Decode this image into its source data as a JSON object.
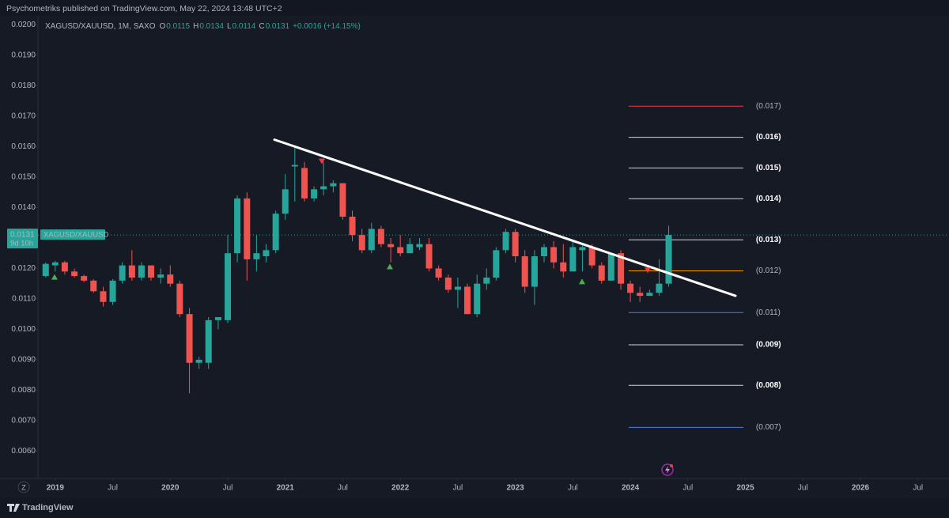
{
  "header": {
    "published": "Psychometriks published on TradingView.com, May 22, 2024 13:48 UTC+2"
  },
  "footer": {
    "brand": "TradingView",
    "timezone_button": "Z"
  },
  "chart_data": {
    "type": "candlestick",
    "legend_title": "XAGUSD/XAUUSD, 1M, SAXO",
    "ohlc_labels": [
      "O",
      "H",
      "L",
      "C"
    ],
    "change": "+0.0016 (+14.15%)",
    "x": [
      2018.917,
      2019.0,
      2019.083,
      2019.167,
      2019.25,
      2019.333,
      2019.417,
      2019.5,
      2019.583,
      2019.667,
      2019.75,
      2019.833,
      2019.917,
      2020.0,
      2020.083,
      2020.167,
      2020.25,
      2020.333,
      2020.417,
      2020.5,
      2020.583,
      2020.667,
      2020.75,
      2020.833,
      2020.917,
      2021.0,
      2021.083,
      2021.167,
      2021.25,
      2021.333,
      2021.417,
      2021.5,
      2021.583,
      2021.667,
      2021.75,
      2021.833,
      2021.917,
      2022.0,
      2022.083,
      2022.167,
      2022.25,
      2022.333,
      2022.417,
      2022.5,
      2022.583,
      2022.667,
      2022.75,
      2022.833,
      2022.917,
      2023.0,
      2023.083,
      2023.167,
      2023.25,
      2023.333,
      2023.417,
      2023.5,
      2023.583,
      2023.667,
      2023.75,
      2023.833,
      2023.917,
      2024.0,
      2024.083,
      2024.167,
      2024.25,
      2024.333
    ],
    "open": [
      0.01175,
      0.0121,
      0.0122,
      0.0119,
      0.01175,
      0.0116,
      0.01125,
      0.0109,
      0.0116,
      0.0121,
      0.0117,
      0.0121,
      0.0117,
      0.0118,
      0.0115,
      0.0105,
      0.0089,
      0.0089,
      0.0103,
      0.0103,
      0.0125,
      0.0143,
      0.0123,
      0.0124,
      0.0126,
      0.0138,
      0.01535,
      0.0153,
      0.0143,
      0.0146,
      0.0147,
      0.0148,
      0.0137,
      0.0131,
      0.0126,
      0.0133,
      0.0128,
      0.0127,
      0.0125,
      0.0127,
      0.0128,
      0.012,
      0.0117,
      0.0113,
      0.0114,
      0.0105,
      0.0115,
      0.0117,
      0.0126,
      0.0132,
      0.0124,
      0.0114,
      0.0124,
      0.0127,
      0.0122,
      0.0119,
      0.0126,
      0.0127,
      0.0121,
      0.0116,
      0.0125,
      0.0115,
      0.0112,
      0.0111,
      0.0112,
      0.0115
    ],
    "high": [
      0.0122,
      0.01225,
      0.01225,
      0.012,
      0.0118,
      0.01165,
      0.0114,
      0.01165,
      0.0122,
      0.0126,
      0.0122,
      0.0121,
      0.012,
      0.0121,
      0.0116,
      0.0107,
      0.0091,
      0.0104,
      0.0104,
      0.0131,
      0.0144,
      0.0145,
      0.0131,
      0.0128,
      0.0139,
      0.0151,
      0.016,
      0.0155,
      0.0147,
      0.0155,
      0.0149,
      0.0148,
      0.0139,
      0.0133,
      0.0135,
      0.0134,
      0.013,
      0.0131,
      0.013,
      0.013,
      0.013,
      0.0121,
      0.0118,
      0.0117,
      0.0115,
      0.0118,
      0.012,
      0.0127,
      0.0133,
      0.0133,
      0.0126,
      0.0126,
      0.0128,
      0.0129,
      0.0128,
      0.0129,
      0.0128,
      0.0128,
      0.0122,
      0.0125,
      0.0126,
      0.0116,
      0.0114,
      0.0113,
      0.0123,
      0.0134
    ],
    "low": [
      0.0117,
      0.0119,
      0.0118,
      0.0117,
      0.01155,
      0.0112,
      0.01075,
      0.0108,
      0.0115,
      0.0116,
      0.0116,
      0.0116,
      0.0115,
      0.0114,
      0.0104,
      0.0079,
      0.0087,
      0.0087,
      0.01,
      0.0102,
      0.0122,
      0.0116,
      0.0119,
      0.0122,
      0.0125,
      0.0136,
      0.0142,
      0.0142,
      0.0142,
      0.0144,
      0.0145,
      0.0136,
      0.0129,
      0.0125,
      0.0125,
      0.0127,
      0.0122,
      0.0124,
      0.0125,
      0.0126,
      0.0119,
      0.0116,
      0.0112,
      0.0107,
      0.0105,
      0.0104,
      0.0113,
      0.0116,
      0.0125,
      0.0122,
      0.0112,
      0.0108,
      0.0122,
      0.012,
      0.0117,
      0.0119,
      0.0119,
      0.012,
      0.0115,
      0.0116,
      0.0113,
      0.0109,
      0.0109,
      0.0111,
      0.0111,
      0.0114
    ],
    "close": [
      0.01215,
      0.0122,
      0.0119,
      0.01175,
      0.0116,
      0.01125,
      0.0109,
      0.0116,
      0.0121,
      0.0117,
      0.0121,
      0.0117,
      0.0118,
      0.0115,
      0.0105,
      0.0089,
      0.009,
      0.0103,
      0.0104,
      0.0125,
      0.0143,
      0.0123,
      0.0125,
      0.0126,
      0.0138,
      0.0146,
      0.0154,
      0.0143,
      0.0146,
      0.0147,
      0.0148,
      0.0137,
      0.0131,
      0.0126,
      0.0133,
      0.0128,
      0.0127,
      0.0125,
      0.0128,
      0.0128,
      0.012,
      0.0117,
      0.0113,
      0.0114,
      0.0105,
      0.0115,
      0.0117,
      0.0126,
      0.0132,
      0.0124,
      0.0114,
      0.0124,
      0.0127,
      0.0122,
      0.0119,
      0.0127,
      0.0127,
      0.0121,
      0.0116,
      0.0125,
      0.0115,
      0.0112,
      0.0111,
      0.0112,
      0.0115,
      0.0131
    ],
    "up_color": "#26a69a",
    "down_color": "#ef5350",
    "xlim": [
      2018.85,
      2026.77
    ],
    "ylim": [
      0.0051,
      0.0203
    ],
    "xticks": [
      2019,
      {
        "value": 2019.5,
        "label": "Jul"
      },
      2020,
      {
        "value": 2020.5,
        "label": "Jul"
      },
      2021,
      {
        "value": 2021.5,
        "label": "Jul"
      },
      2022,
      {
        "value": 2022.5,
        "label": "Jul"
      },
      2023,
      {
        "value": 2023.5,
        "label": "Jul"
      },
      2024,
      {
        "value": 2024.5,
        "label": "Jul"
      },
      2025,
      {
        "value": 2025.5,
        "label": "Jul"
      },
      2026,
      {
        "value": 2026.5,
        "label": "Jul"
      }
    ],
    "yticks": [
      {
        "value": 0.02,
        "label": "0.0200"
      },
      {
        "value": 0.019,
        "label": "0.0190"
      },
      {
        "value": 0.018,
        "label": "0.0180"
      },
      {
        "value": 0.017,
        "label": "0.0170"
      },
      {
        "value": 0.016,
        "label": "0.0160"
      },
      {
        "value": 0.015,
        "label": "0.0150"
      },
      {
        "value": 0.014,
        "label": "0.0140"
      },
      {
        "value": 0.013,
        "label": "0.0130"
      },
      {
        "value": 0.012,
        "label": "0.0120"
      },
      {
        "value": 0.011,
        "label": "0.0110"
      },
      {
        "value": 0.01,
        "label": "0.0100"
      },
      {
        "value": 0.009,
        "label": "0.0090"
      },
      {
        "value": 0.008,
        "label": "0.0080"
      },
      {
        "value": 0.007,
        "label": "0.0070"
      },
      {
        "value": 0.006,
        "label": "0.0060"
      }
    ],
    "last_price": 0.0131,
    "last_price_symbol": "XAGUSD/XAUUSD",
    "countdown": "9d 10h",
    "trendline": {
      "x": [
        2020.906,
        2024.914
      ],
      "y": [
        0.01623,
        0.0111
      ],
      "color": "#ffffff"
    },
    "levels_x": [
      2023.985,
      2024.982
    ],
    "levels": [
      {
        "text": "(0.017)",
        "value": 0.01733,
        "color": "#f23645"
      },
      {
        "text": "(0.016)",
        "value": 0.01631,
        "color": "#d1d4dc"
      },
      {
        "text": "(0.015)",
        "value": 0.0153,
        "color": "#d1d4dc"
      },
      {
        "text": "(0.014)",
        "value": 0.01429,
        "color": "#d1d4dc"
      },
      {
        "text": "(0.013)",
        "value": 0.01294,
        "color": "#d1d4dc"
      },
      {
        "text": "(0.012)",
        "value": 0.01192,
        "color": "#ff9800"
      },
      {
        "text": "(0.011)",
        "value": 0.01055,
        "color": "#4f7fe6"
      },
      {
        "text": "(0.009)",
        "value": 0.00949,
        "color": "#d1d4dc"
      },
      {
        "text": "(0.008)",
        "value": 0.00816,
        "color": "#d1d4dc"
      },
      {
        "text": "(0.007)",
        "value": 0.00678,
        "color": "#4f7fe6"
      }
    ],
    "signals": [
      {
        "x": 2018.994,
        "y": 0.01171,
        "marker": "up",
        "color": "#4caf50"
      },
      {
        "x": 2021.318,
        "y": 0.01553,
        "marker": "down",
        "color": "#f23645"
      },
      {
        "x": 2021.909,
        "y": 0.01205,
        "marker": "up",
        "color": "#4caf50"
      },
      {
        "x": 2023.58,
        "y": 0.01156,
        "marker": "up",
        "color": "#4caf50"
      },
      {
        "x": 2024.151,
        "y": 0.01195,
        "marker": "down",
        "color": "#f23645"
      }
    ]
  }
}
